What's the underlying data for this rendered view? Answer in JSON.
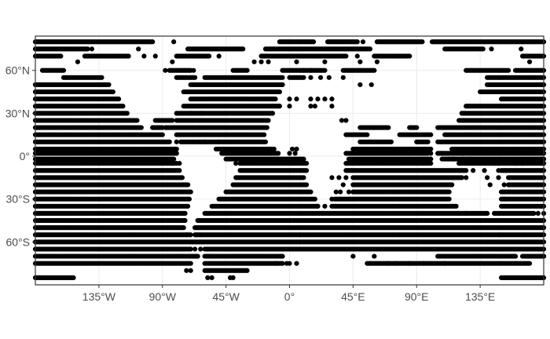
{
  "chart_data": {
    "type": "scatter",
    "title": "",
    "xlabel": "",
    "ylabel": "",
    "xlim": [
      -180,
      180
    ],
    "ylim": [
      -90,
      84
    ],
    "grid": true,
    "legend": "none",
    "point_color": "#000000",
    "x_ticks": [
      {
        "value": -135,
        "label": "135°W"
      },
      {
        "value": -90,
        "label": "90°W"
      },
      {
        "value": -45,
        "label": "45°W"
      },
      {
        "value": 0,
        "label": "0°"
      },
      {
        "value": 45,
        "label": "45°E"
      },
      {
        "value": 90,
        "label": "90°E"
      },
      {
        "value": 135,
        "label": "135°E"
      }
    ],
    "y_ticks": [
      {
        "value": 60,
        "label": "60°N"
      },
      {
        "value": 30,
        "label": "30°N"
      },
      {
        "value": 0,
        "label": "0°"
      },
      {
        "value": -30,
        "label": "30°S"
      },
      {
        "value": -60,
        "label": "60°S"
      }
    ],
    "point_spacing_deg": 1,
    "rows": [
      {
        "lat": 80,
        "segments": [
          [
            -180,
            -97
          ],
          [
            -7,
            17
          ],
          [
            27,
            48
          ],
          [
            62,
            94
          ],
          [
            101,
            180
          ]
        ],
        "points": [
          -82,
          52
        ]
      },
      {
        "lat": 75,
        "segments": [
          [
            -180,
            -143
          ],
          [
            -72,
            -33
          ],
          [
            -17,
            57
          ],
          [
            110,
            137
          ]
        ],
        "points": [
          -140,
          -107,
          143,
          164
        ]
      },
      {
        "lat": 70,
        "segments": [
          [
            -180,
            -162
          ],
          [
            -145,
            -114
          ],
          [
            -80,
            -57
          ],
          [
            -20,
            40
          ],
          [
            60,
            85
          ],
          [
            165,
            180
          ]
        ],
        "points": [
          -103,
          -50,
          -95,
          48,
          65
        ]
      },
      {
        "lat": 66,
        "points": [
          -150,
          -83,
          -25,
          -20,
          -15,
          5,
          25,
          50,
          62,
          170
        ]
      },
      {
        "lat": 60,
        "segments": [
          [
            -175,
            -160
          ],
          [
            -85,
            -70
          ],
          [
            -40,
            -30
          ],
          [
            -5,
            25
          ],
          [
            38,
            60
          ],
          [
            125,
            155
          ],
          [
            160,
            180
          ]
        ],
        "points": [
          -88,
          -68,
          10,
          15
        ]
      },
      {
        "lat": 55,
        "segments": [
          [
            -160,
            -133
          ],
          [
            -80,
            -67
          ],
          [
            -60,
            -5
          ],
          [
            0,
            10
          ],
          [
            140,
            180
          ]
        ],
        "points": [
          15,
          22,
          28,
          38
        ]
      },
      {
        "lat": 50,
        "segments": [
          [
            -180,
            -128
          ],
          [
            -70,
            -5
          ],
          [
            140,
            180
          ]
        ],
        "points": [
          50,
          58
        ]
      },
      {
        "lat": 45,
        "segments": [
          [
            -180,
            -125
          ],
          [
            -75,
            -7
          ],
          [
            135,
            180
          ]
        ]
      },
      {
        "lat": 40,
        "segments": [
          [
            -180,
            -121
          ],
          [
            -70,
            -10
          ],
          [
            150,
            180
          ]
        ],
        "points": [
          0,
          5,
          15,
          20,
          25,
          30
        ]
      },
      {
        "lat": 35,
        "segments": [
          [
            -180,
            -118
          ],
          [
            -75,
            -7
          ],
          [
            125,
            180
          ]
        ],
        "points": [
          0,
          15,
          18,
          30
        ]
      },
      {
        "lat": 30,
        "segments": [
          [
            -180,
            -115
          ],
          [
            -80,
            -12
          ],
          [
            122,
            180
          ]
        ],
        "points": [
          -70,
          -62
        ]
      },
      {
        "lat": 25,
        "segments": [
          [
            -180,
            -108
          ],
          [
            -95,
            -83
          ],
          [
            -80,
            -15
          ],
          [
            120,
            180
          ]
        ],
        "points": [
          37,
          40
        ]
      },
      {
        "lat": 20,
        "segments": [
          [
            -180,
            -105
          ],
          [
            -97,
            -90
          ],
          [
            -87,
            -16
          ],
          [
            50,
            70
          ],
          [
            85,
            90
          ],
          [
            105,
            180
          ]
        ],
        "points": [
          -93,
          -88,
          60
        ]
      },
      {
        "lat": 15,
        "segments": [
          [
            -180,
            -90
          ],
          [
            -80,
            -18
          ],
          [
            40,
            55
          ],
          [
            78,
            100
          ],
          [
            110,
            180
          ]
        ]
      },
      {
        "lat": 10,
        "segments": [
          [
            -180,
            -85
          ],
          [
            -77,
            -17
          ],
          [
            50,
            72
          ],
          [
            90,
            98
          ],
          [
            105,
            180
          ]
        ],
        "points": [
          -80,
          -60,
          -50
        ]
      },
      {
        "lat": 5,
        "segments": [
          [
            -180,
            -80
          ],
          [
            -52,
            -11
          ],
          [
            45,
            100
          ],
          [
            115,
            180
          ]
        ],
        "points": [
          2,
          5
        ]
      },
      {
        "lat": 2,
        "segments": [
          [
            -180,
            -80
          ],
          [
            -48,
            -8
          ],
          [
            40,
            98
          ],
          [
            105,
            180
          ]
        ],
        "points": [
          0,
          4,
          80,
          85,
          92,
          97,
          100,
          108
        ]
      },
      {
        "lat": -2,
        "segments": [
          [
            -180,
            -82
          ],
          [
            -45,
            10
          ],
          [
            42,
            100
          ],
          [
            108,
            180
          ]
        ],
        "points": [
          100,
          113,
          116,
          123,
          128
        ]
      },
      {
        "lat": -5,
        "segments": [
          [
            -180,
            -80
          ],
          [
            -35,
            12
          ],
          [
            40,
            100
          ],
          [
            120,
            180
          ]
        ],
        "points": [
          -83,
          -78,
          -38,
          145,
          148,
          160,
          165
        ]
      },
      {
        "lat": -10,
        "segments": [
          [
            -180,
            -78
          ],
          [
            -35,
            12
          ],
          [
            40,
            125
          ],
          [
            150,
            180
          ]
        ],
        "points": [
          130,
          138,
          148
        ]
      },
      {
        "lat": -15,
        "segments": [
          [
            -180,
            -76
          ],
          [
            -38,
            10
          ],
          [
            45,
            122
          ],
          [
            155,
            180
          ]
        ],
        "points": [
          30,
          35,
          40,
          125,
          140,
          148
        ]
      },
      {
        "lat": -20,
        "segments": [
          [
            -180,
            -72
          ],
          [
            -40,
            12
          ],
          [
            45,
            115
          ],
          [
            155,
            180
          ]
        ],
        "points": [
          38,
          142,
          152
        ]
      },
      {
        "lat": -25,
        "segments": [
          [
            -180,
            -70
          ],
          [
            -45,
            15
          ],
          [
            45,
            113
          ],
          [
            150,
            180
          ]
        ],
        "points": [
          33,
          36,
          42
        ]
      },
      {
        "lat": -30,
        "segments": [
          [
            -180,
            -71
          ],
          [
            -50,
            18
          ],
          [
            32,
            113
          ],
          [
            150,
            180
          ]
        ],
        "points": [
          30,
          152
        ]
      },
      {
        "lat": -35,
        "segments": [
          [
            -180,
            -72
          ],
          [
            -55,
            20
          ],
          [
            30,
            118
          ],
          [
            150,
            180
          ]
        ],
        "points": [
          20,
          25
        ]
      },
      {
        "lat": -40,
        "segments": [
          [
            -180,
            -74
          ],
          [
            -60,
            140
          ],
          [
            145,
            173
          ]
        ],
        "points": [
          125,
          176,
          180
        ]
      },
      {
        "lat": -45,
        "segments": [
          [
            -180,
            -74
          ],
          [
            -65,
            180
          ]
        ],
        "points": [
          170,
          176
        ]
      },
      {
        "lat": -50,
        "segments": [
          [
            -180,
            -75
          ],
          [
            -67,
            180
          ]
        ]
      },
      {
        "lat": -55,
        "segments": [
          [
            -180,
            -70
          ],
          [
            -67,
            180
          ]
        ],
        "points": [
          -73,
          -66
        ]
      },
      {
        "lat": -60,
        "segments": [
          [
            -180,
            180
          ]
        ]
      },
      {
        "lat": -65,
        "segments": [
          [
            -180,
            -70
          ],
          [
            -60,
            180
          ]
        ],
        "points": [
          -67,
          -63
        ]
      },
      {
        "lat": -70,
        "segments": [
          [
            -180,
            -65
          ],
          [
            -60,
            -5
          ],
          [
            105,
            160
          ],
          [
            165,
            180
          ]
        ],
        "points": [
          45,
          60,
          -57,
          180
        ]
      },
      {
        "lat": -75,
        "segments": [
          [
            -180,
            -70
          ],
          [
            -60,
            -5
          ],
          [
            55,
            170
          ]
        ],
        "points": [
          -10,
          -2,
          0,
          5,
          70,
          75,
          85,
          95,
          110
        ]
      },
      {
        "lat": -80,
        "segments": [
          [
            -60,
            -30
          ]
        ],
        "points": [
          -70,
          -73
        ]
      },
      {
        "lat": -85,
        "segments": [
          [
            -180,
            -153
          ],
          [
            150,
            180
          ]
        ],
        "points": [
          -58,
          -55,
          -42,
          -40
        ]
      }
    ]
  }
}
